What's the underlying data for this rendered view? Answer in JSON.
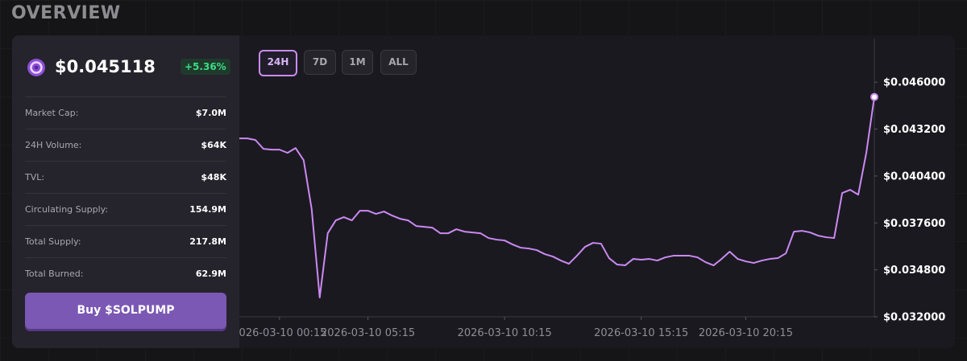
{
  "header": {
    "title": "OVERVIEW"
  },
  "token": {
    "price": "$0.045118",
    "change": "+5.36%"
  },
  "stats": [
    {
      "label": "Market Cap:",
      "value": "$7.0M"
    },
    {
      "label": "24H Volume:",
      "value": "$64K"
    },
    {
      "label": "TVL:",
      "value": "$48K"
    },
    {
      "label": "Circulating Supply:",
      "value": "154.9M"
    },
    {
      "label": "Total Supply:",
      "value": "217.8M"
    },
    {
      "label": "Total Burned:",
      "value": "62.9M"
    }
  ],
  "buy_button": "Buy $SOLPUMP",
  "timeframes": [
    "24H",
    "7D",
    "1M",
    "ALL"
  ],
  "chart_data": {
    "type": "line",
    "series": [
      {
        "name": "price",
        "color": "#c98af2",
        "values": [
          0.042644,
          0.042644,
          0.042548,
          0.042021,
          0.041973,
          0.041973,
          0.041781,
          0.042068,
          0.041349,
          0.038425,
          0.033151,
          0.036986,
          0.037753,
          0.037945,
          0.037753,
          0.038329,
          0.038329,
          0.038137,
          0.038281,
          0.038041,
          0.037849,
          0.037753,
          0.037418,
          0.03737,
          0.037322,
          0.036986,
          0.036986,
          0.037226,
          0.037082,
          0.037034,
          0.036986,
          0.036699,
          0.036603,
          0.036555,
          0.036315,
          0.036123,
          0.036075,
          0.035979,
          0.03574,
          0.035596,
          0.035356,
          0.035164,
          0.035644,
          0.036171,
          0.036411,
          0.036363,
          0.0355,
          0.035116,
          0.035068,
          0.035452,
          0.035404,
          0.035452,
          0.035356,
          0.035548,
          0.035644,
          0.035644,
          0.035644,
          0.035548,
          0.03526,
          0.035068,
          0.035452,
          0.035884,
          0.035452,
          0.035308,
          0.035212,
          0.035356,
          0.035452,
          0.0355,
          0.035788,
          0.037082,
          0.03713,
          0.037034,
          0.036842,
          0.036747,
          0.036699,
          0.039384,
          0.039575,
          0.039288,
          0.041781,
          0.045118
        ]
      }
    ],
    "xlim": [
      0,
      79
    ],
    "xticks": [
      {
        "value": 5,
        "label": "2026-03-10 00:15"
      },
      {
        "value": 16,
        "label": "2026-03-10 05:15"
      },
      {
        "value": 33,
        "label": "2026-03-10 10:15"
      },
      {
        "value": 50,
        "label": "2026-03-10 15:15"
      },
      {
        "value": 63,
        "label": "2026-03-10 20:15"
      }
    ],
    "ylim": [
      0.032,
      0.0486
    ],
    "yticks": [
      {
        "value": 0.032,
        "label": "$0.032000"
      },
      {
        "value": 0.0348,
        "label": "$0.034800"
      },
      {
        "value": 0.0376,
        "label": "$0.037600"
      },
      {
        "value": 0.0404,
        "label": "$0.040400"
      },
      {
        "value": 0.0432,
        "label": "$0.043200"
      },
      {
        "value": 0.046,
        "label": "$0.046000"
      }
    ]
  }
}
